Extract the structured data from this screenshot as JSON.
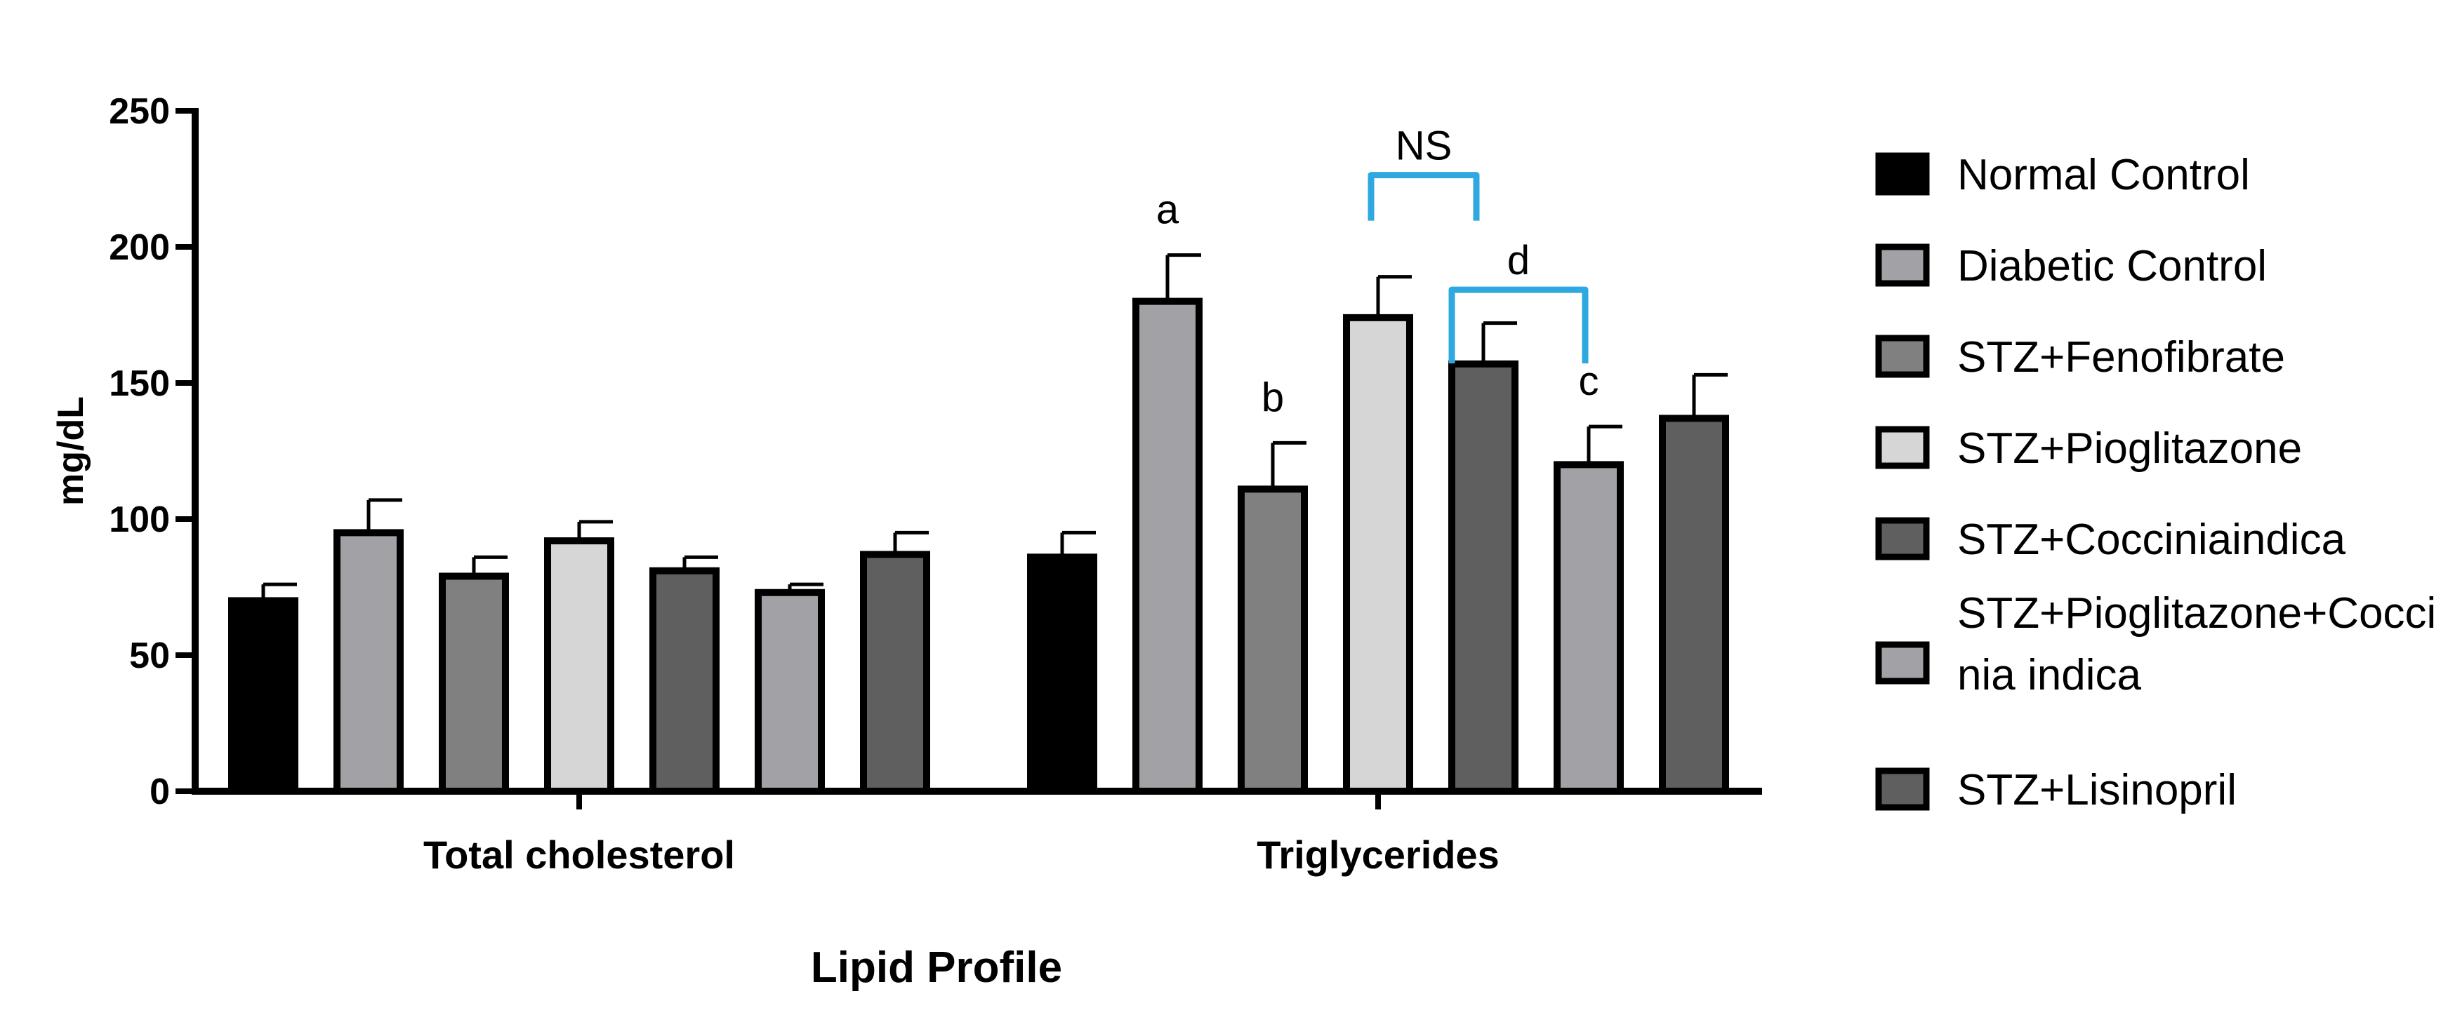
{
  "chart_data": {
    "type": "bar",
    "categories": [
      "Total cholesterol",
      "Triglycerides"
    ],
    "xlabel": "Lipid Profile",
    "ylabel": "mg/dL",
    "ylim": [
      0,
      250
    ],
    "yticks": [
      "0",
      "50",
      "100",
      "150",
      "200",
      "250"
    ],
    "grid": false,
    "legend_position": "right",
    "series": [
      {
        "name": "Normal Control",
        "color": "#000000",
        "values": [
          70,
          86
        ],
        "errors": [
          6,
          9
        ]
      },
      {
        "name": "Diabetic Control",
        "color": "#a2a1a6",
        "values": [
          95,
          180
        ],
        "errors": [
          12,
          17
        ]
      },
      {
        "name": "STZ+Fenofibrate",
        "color": "#808080",
        "values": [
          79,
          111
        ],
        "errors": [
          7,
          17
        ]
      },
      {
        "name": "STZ+Pioglitazone",
        "color": "#d6d6d6",
        "values": [
          92,
          174
        ],
        "errors": [
          7,
          15
        ]
      },
      {
        "name": "STZ+Cocciniaindica",
        "color": "#5f5f5f",
        "values": [
          81,
          157
        ],
        "errors": [
          5,
          15
        ]
      },
      {
        "name": "STZ+Pioglitazone+Coccinia indica",
        "legend_lines": [
          "STZ+Pioglitazone+Cocci",
          "nia indica"
        ],
        "color": "#a2a1a6",
        "values": [
          73,
          120
        ],
        "errors": [
          3,
          14
        ]
      },
      {
        "name": "STZ+Lisinopril",
        "color": "#5f5f5f",
        "values": [
          87,
          137
        ],
        "errors": [
          8,
          16
        ]
      }
    ],
    "annotations": {
      "letters": [
        {
          "text": "a",
          "category": 1,
          "series": 1
        },
        {
          "text": "b",
          "category": 1,
          "series": 2
        },
        {
          "text": "c",
          "category": 1,
          "series": 5
        }
      ],
      "brackets": [
        {
          "text": "NS",
          "category": 1,
          "from_series": 3,
          "to_series": 4,
          "color": "#2fa8e0"
        },
        {
          "text": "d",
          "category": 1,
          "from_series": 4,
          "to_series": 5,
          "color": "#2fa8e0"
        }
      ]
    }
  }
}
